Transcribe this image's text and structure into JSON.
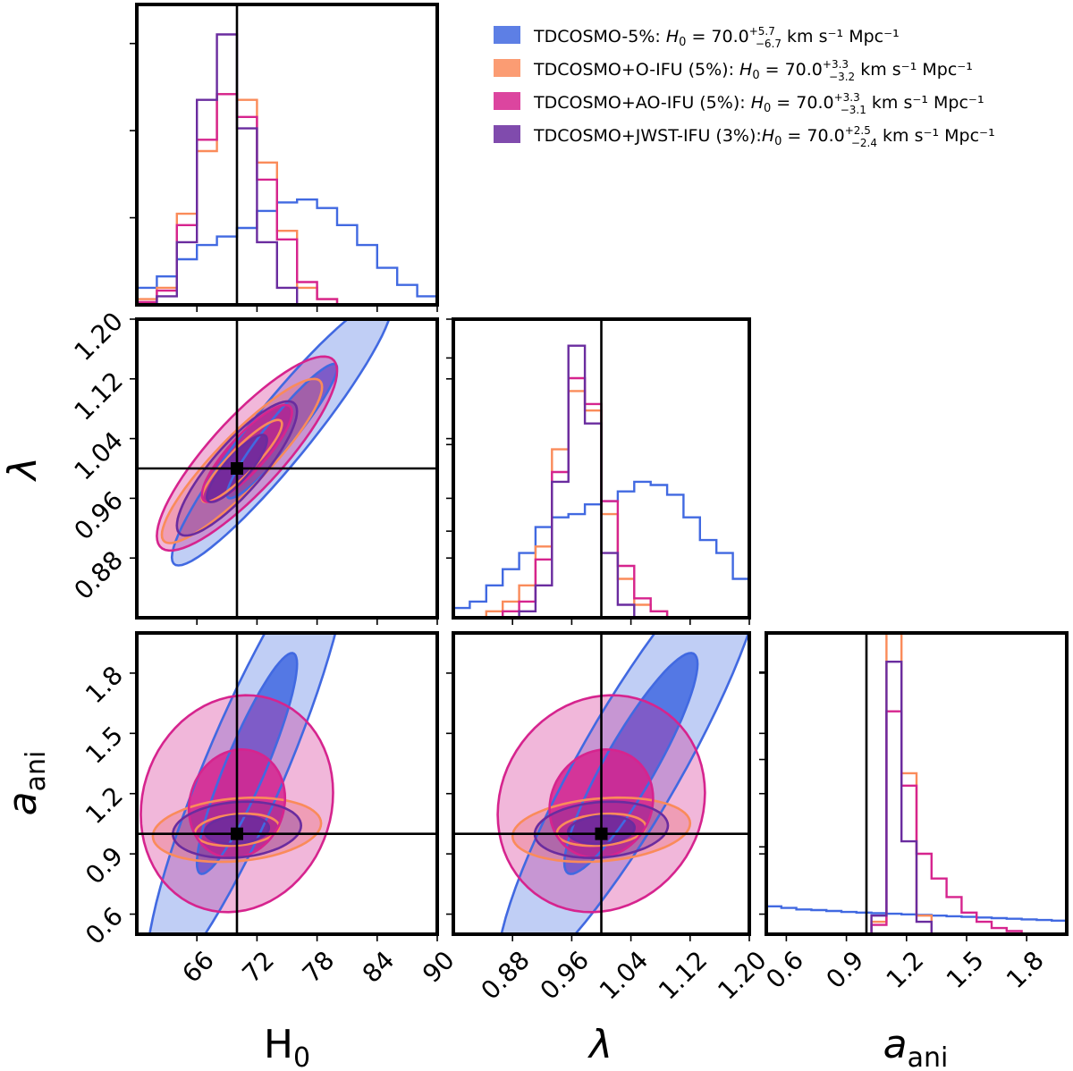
{
  "chart_data": {
    "type": "corner",
    "parameters": [
      {
        "name": "H0",
        "label_main": "H",
        "label_sub": "0",
        "truth": 70.0,
        "range": [
          60,
          90
        ],
        "ticks": [
          "66",
          "72",
          "78",
          "84",
          "90"
        ]
      },
      {
        "name": "lambda",
        "label_main": "λ",
        "label_sub": "",
        "truth": 1.0,
        "range": [
          0.8,
          1.2
        ],
        "ticks": [
          "0.88",
          "0.96",
          "1.04",
          "1.12",
          "1.20"
        ]
      },
      {
        "name": "a_ani",
        "label_main": "a",
        "label_sub": "ani",
        "truth": 1.0,
        "range": [
          0.5,
          2.0
        ],
        "ticks": [
          "0.6",
          "0.9",
          "1.2",
          "1.5",
          "1.8"
        ]
      }
    ],
    "series": [
      {
        "name": "TDCOSMO-5%",
        "legend_text": "TDCOSMO-5%: ",
        "h0_value": "70.0",
        "h0_plus": "+5.7",
        "h0_minus": "−6.7",
        "color": "#4169e1",
        "h0_centers": [
          61,
          63,
          65,
          67,
          69,
          71,
          73,
          75,
          77,
          79,
          81,
          83,
          85,
          87,
          89
        ],
        "h0_hist": [
          0.06,
          0.1,
          0.16,
          0.21,
          0.24,
          0.27,
          0.33,
          0.36,
          0.37,
          0.34,
          0.28,
          0.21,
          0.13,
          0.07,
          0.03
        ],
        "lambda_hist": [
          0.03,
          0.05,
          0.1,
          0.15,
          0.2,
          0.28,
          0.31,
          0.32,
          0.35,
          0.36,
          0.39,
          0.42,
          0.41,
          0.38,
          0.31,
          0.24,
          0.2,
          0.12
        ],
        "aani_hist": [
          0.09,
          0.085,
          0.08,
          0.078,
          0.075,
          0.072,
          0.07,
          0.068,
          0.066,
          0.064,
          0.062,
          0.06,
          0.058,
          0.056,
          0.054,
          0.052,
          0.05,
          0.048,
          0.046,
          0.044
        ],
        "contour_h0_lambda": {
          "center": [
            74.5,
            1.05
          ],
          "sigma": [
            5.5,
            0.09
          ],
          "rho": 0.94
        },
        "contour_h0_aani": {
          "center": [
            71.0,
            1.35
          ],
          "sigma": [
            5.0,
            0.55
          ],
          "rho": 0.9
        },
        "contour_lambda_aani": {
          "center": [
            1.04,
            1.35
          ],
          "sigma": [
            0.09,
            0.55
          ],
          "rho": 0.9
        }
      },
      {
        "name": "TDCOSMO+O-IFU (5%)",
        "legend_text": "TDCOSMO+O-IFU (5%): ",
        "h0_value": "70.0",
        "h0_plus": "+3.3",
        "h0_minus": "−3.2",
        "color": "#fa8b5a",
        "h0_centers": [
          61,
          63,
          65,
          67,
          69,
          71,
          73,
          75,
          77,
          79,
          81,
          83,
          85,
          87,
          89
        ],
        "h0_hist": [
          0.02,
          0.06,
          0.32,
          0.54,
          0.74,
          0.72,
          0.5,
          0.26,
          0.06,
          0.02,
          0.0,
          0.0,
          0.0,
          0.0,
          0.0
        ],
        "lambda_hist": [
          0.0,
          0.0,
          0.02,
          0.05,
          0.1,
          0.22,
          0.52,
          0.7,
          0.64,
          0.32,
          0.12,
          0.04,
          0.02,
          0.0,
          0.0,
          0.0,
          0.0,
          0.0
        ],
        "aani_hist": [
          0.0,
          0.0,
          0.0,
          0.0,
          0.0,
          0.0,
          0.0,
          0.04,
          1.0,
          0.52,
          0.06,
          0.0,
          0.0,
          0.0,
          0.0,
          0.0,
          0.0,
          0.0,
          0.0,
          0.0
        ],
        "contour_h0_lambda": {
          "center": [
            70.5,
            1.01
          ],
          "sigma": [
            4.0,
            0.055
          ],
          "rho": 0.9
        },
        "contour_h0_aani": {
          "center": [
            70.0,
            1.02
          ],
          "sigma": [
            4.2,
            0.08
          ],
          "rho": 0.2
        },
        "contour_lambda_aani": {
          "center": [
            1.0,
            1.02
          ],
          "sigma": [
            0.06,
            0.08
          ],
          "rho": 0.2
        }
      },
      {
        "name": "TDCOSMO+AO-IFU (5%)",
        "legend_text": "TDCOSMO+AO-IFU (5%): ",
        "h0_value": "70.0",
        "h0_plus": "+3.3",
        "h0_minus": "−3.1",
        "color": "#d6248e",
        "h0_centers": [
          61,
          63,
          65,
          67,
          69,
          71,
          73,
          75,
          77,
          79,
          81,
          83,
          85,
          87,
          89
        ],
        "h0_hist": [
          0.01,
          0.05,
          0.28,
          0.58,
          0.74,
          0.66,
          0.44,
          0.23,
          0.08,
          0.02,
          0.0,
          0.0,
          0.0,
          0.0,
          0.0
        ],
        "lambda_hist": [
          0.0,
          0.0,
          0.0,
          0.02,
          0.05,
          0.18,
          0.45,
          0.74,
          0.66,
          0.36,
          0.16,
          0.06,
          0.02,
          0.0,
          0.0,
          0.0,
          0.0,
          0.0
        ],
        "aani_hist": [
          0.0,
          0.0,
          0.0,
          0.0,
          0.0,
          0.0,
          0.0,
          0.03,
          0.72,
          0.48,
          0.26,
          0.18,
          0.12,
          0.07,
          0.04,
          0.02,
          0.01,
          0.0,
          0.0,
          0.0
        ],
        "contour_h0_lambda": {
          "center": [
            71.0,
            1.02
          ],
          "sigma": [
            4.5,
            0.065
          ],
          "rho": 0.85
        },
        "contour_h0_aani": {
          "center": [
            70.0,
            1.15
          ],
          "sigma": [
            4.8,
            0.27
          ],
          "rho": 0.1
        },
        "contour_lambda_aani": {
          "center": [
            1.0,
            1.15
          ],
          "sigma": [
            0.07,
            0.27
          ],
          "rho": 0.1
        }
      },
      {
        "name": "TDCOSMO+JWST-IFU (3%)",
        "legend_text": "TDCOSMO+JWST-IFU (3%):",
        "h0_value": "70.0",
        "h0_plus": "+2.5",
        "h0_minus": "−2.4",
        "color": "#6a2c9f",
        "h0_centers": [
          61,
          63,
          65,
          67,
          69,
          71,
          73,
          75,
          77,
          79,
          81,
          83,
          85,
          87,
          89
        ],
        "h0_hist": [
          0.0,
          0.03,
          0.22,
          0.72,
          0.95,
          0.62,
          0.22,
          0.06,
          0.0,
          0.0,
          0.0,
          0.0,
          0.0,
          0.0,
          0.0
        ],
        "lambda_hist": [
          0.0,
          0.0,
          0.0,
          0.0,
          0.02,
          0.1,
          0.42,
          0.84,
          0.6,
          0.2,
          0.04,
          0.0,
          0.0,
          0.0,
          0.0,
          0.0,
          0.0,
          0.0
        ],
        "aani_hist": [
          0.0,
          0.0,
          0.0,
          0.0,
          0.0,
          0.0,
          0.0,
          0.06,
          0.88,
          0.3,
          0.04,
          0.0,
          0.0,
          0.0,
          0.0,
          0.0,
          0.0,
          0.0,
          0.0,
          0.0
        ],
        "contour_h0_lambda": {
          "center": [
            70.0,
            1.0
          ],
          "sigma": [
            3.0,
            0.045
          ],
          "rho": 0.85
        },
        "contour_h0_aani": {
          "center": [
            70.0,
            1.02
          ],
          "sigma": [
            3.2,
            0.07
          ],
          "rho": 0.15
        },
        "contour_lambda_aani": {
          "center": [
            1.0,
            1.02
          ],
          "sigma": [
            0.045,
            0.07
          ],
          "rho": 0.15
        }
      }
    ],
    "legend_unit": " km s⁻¹ Mpc⁻¹",
    "legend_symbol": "H",
    "legend_symbol_sub": "0"
  }
}
